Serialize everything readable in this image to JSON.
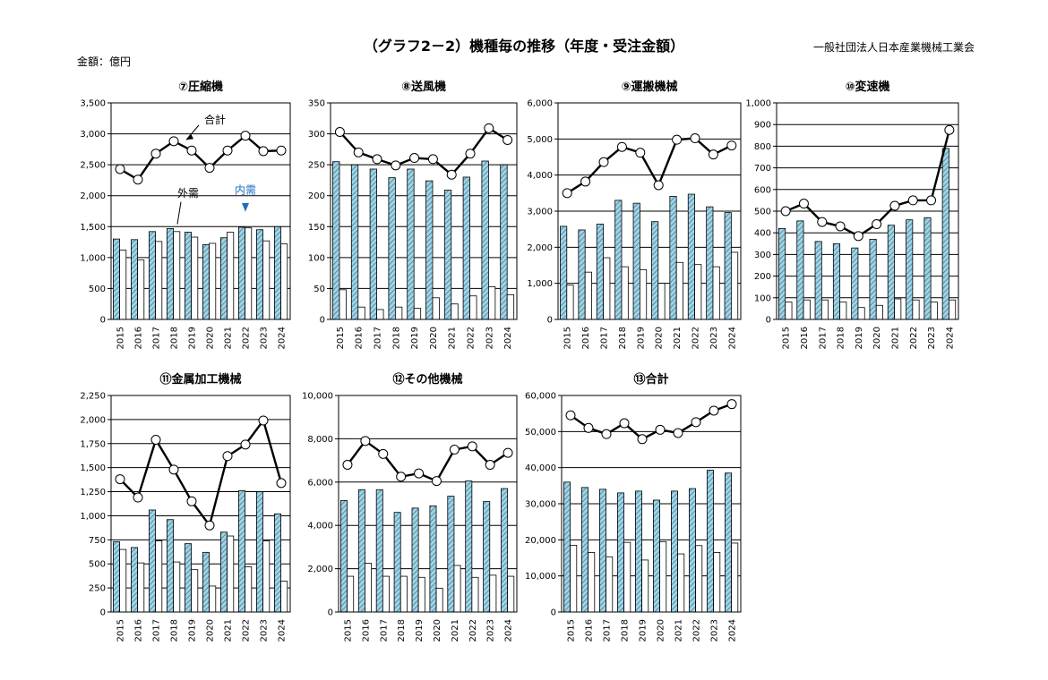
{
  "header": {
    "title": "（グラフ2－2）機種毎の推移（年度・受注金額）",
    "organization": "一般社団法人日本産業機械工業会",
    "unit": "金額：億円"
  },
  "colors": {
    "exports_fill": "#9fd3e6",
    "exports_hatch": "#3a6f86",
    "domestic_fill": "#ffffff",
    "line": "#000000",
    "annotation_blue": "#1f6fbf"
  },
  "chart_data": [
    {
      "type": "bar+line",
      "title": "⑦圧縮機",
      "categories": [
        "2015",
        "2016",
        "2017",
        "2018",
        "2019",
        "2020",
        "2021",
        "2022",
        "2023",
        "2024"
      ],
      "ylim": [
        0,
        3500
      ],
      "yticks": [
        0,
        500,
        1000,
        1500,
        2000,
        2500,
        3000,
        3500
      ],
      "ytick_labels": [
        "0",
        "500",
        "1,000",
        "1,500",
        "2,000",
        "2,500",
        "3,000",
        "3,500"
      ],
      "grid": true,
      "series": [
        {
          "name": "外需",
          "kind": "bar",
          "values": [
            1300,
            1290,
            1420,
            1470,
            1410,
            1210,
            1320,
            1490,
            1450,
            1500
          ]
        },
        {
          "name": "内需",
          "kind": "bar",
          "values": [
            1120,
            960,
            1260,
            1420,
            1330,
            1230,
            1410,
            1480,
            1270,
            1220
          ]
        },
        {
          "name": "合計",
          "kind": "line",
          "values": [
            2430,
            2260,
            2680,
            2880,
            2730,
            2450,
            2730,
            2970,
            2720,
            2730
          ]
        }
      ],
      "annotations": [
        {
          "text": "合計",
          "color": "#000000"
        },
        {
          "text": "外需",
          "color": "#000000"
        },
        {
          "text": "内需",
          "color": "#1f6fbf"
        }
      ]
    },
    {
      "type": "bar+line",
      "title": "⑧送風機",
      "categories": [
        "2015",
        "2016",
        "2017",
        "2018",
        "2019",
        "2020",
        "2021",
        "2022",
        "2023",
        "2024"
      ],
      "ylim": [
        0,
        350
      ],
      "yticks": [
        0,
        50,
        100,
        150,
        200,
        250,
        300,
        350
      ],
      "ytick_labels": [
        "0",
        "50",
        "100",
        "150",
        "200",
        "250",
        "300",
        "350"
      ],
      "grid": true,
      "series": [
        {
          "name": "外需",
          "kind": "bar",
          "values": [
            255,
            250,
            243,
            229,
            243,
            224,
            209,
            230,
            256,
            250
          ]
        },
        {
          "name": "内需",
          "kind": "bar",
          "values": [
            48,
            20,
            16,
            20,
            18,
            35,
            25,
            38,
            53,
            40
          ]
        },
        {
          "name": "合計",
          "kind": "line",
          "values": [
            303,
            270,
            259,
            249,
            261,
            259,
            234,
            268,
            309,
            290
          ]
        }
      ]
    },
    {
      "type": "bar+line",
      "title": "⑨運搬機械",
      "categories": [
        "2015",
        "2016",
        "2017",
        "2018",
        "2019",
        "2020",
        "2021",
        "2022",
        "2023",
        "2024"
      ],
      "ylim": [
        0,
        6000
      ],
      "yticks": [
        0,
        1000,
        2000,
        3000,
        4000,
        5000,
        6000
      ],
      "ytick_labels": [
        "0",
        "1,000",
        "2,000",
        "3,000",
        "4,000",
        "5,000",
        "6,000"
      ],
      "grid": true,
      "series": [
        {
          "name": "外需",
          "kind": "bar",
          "values": [
            2580,
            2480,
            2640,
            3300,
            3220,
            2710,
            3410,
            3470,
            3120,
            2960
          ]
        },
        {
          "name": "内需",
          "kind": "bar",
          "values": [
            950,
            1310,
            1710,
            1460,
            1380,
            1000,
            1580,
            1520,
            1460,
            1860
          ]
        },
        {
          "name": "合計",
          "kind": "line",
          "values": [
            3500,
            3820,
            4360,
            4780,
            4620,
            3720,
            4980,
            5020,
            4570,
            4820
          ]
        }
      ]
    },
    {
      "type": "bar+line",
      "title": "⑩変速機",
      "categories": [
        "2015",
        "2016",
        "2017",
        "2018",
        "2019",
        "2020",
        "2021",
        "2022",
        "2023",
        "2024"
      ],
      "ylim": [
        0,
        1000
      ],
      "yticks": [
        0,
        100,
        200,
        300,
        400,
        500,
        600,
        700,
        800,
        900,
        1000
      ],
      "ytick_labels": [
        "0",
        "100",
        "200",
        "300",
        "400",
        "500",
        "600",
        "700",
        "800",
        "900",
        "1,000"
      ],
      "grid": true,
      "series": [
        {
          "name": "外需",
          "kind": "bar",
          "values": [
            420,
            455,
            360,
            350,
            330,
            370,
            435,
            460,
            470,
            790
          ]
        },
        {
          "name": "内需",
          "kind": "bar",
          "values": [
            80,
            90,
            90,
            80,
            55,
            65,
            95,
            90,
            80,
            90
          ]
        },
        {
          "name": "合計",
          "kind": "line",
          "values": [
            500,
            535,
            450,
            430,
            385,
            440,
            525,
            550,
            550,
            875
          ]
        }
      ]
    },
    {
      "type": "bar+line",
      "title": "⑪金属加工機械",
      "categories": [
        "2015",
        "2016",
        "2017",
        "2018",
        "2019",
        "2020",
        "2021",
        "2022",
        "2023",
        "2024"
      ],
      "ylim": [
        0,
        2250
      ],
      "yticks": [
        0,
        250,
        500,
        750,
        1000,
        1250,
        1500,
        1750,
        2000,
        2250
      ],
      "ytick_labels": [
        "0",
        "250",
        "500",
        "750",
        "1,000",
        "1,250",
        "1,500",
        "1,750",
        "2,000",
        "2,250"
      ],
      "grid": true,
      "series": [
        {
          "name": "外需",
          "kind": "bar",
          "values": [
            730,
            670,
            1060,
            960,
            710,
            620,
            830,
            1260,
            1250,
            1020
          ]
        },
        {
          "name": "内需",
          "kind": "bar",
          "values": [
            650,
            510,
            740,
            520,
            440,
            270,
            790,
            470,
            740,
            320
          ]
        },
        {
          "name": "合計",
          "kind": "line",
          "values": [
            1380,
            1190,
            1790,
            1480,
            1150,
            900,
            1620,
            1740,
            1990,
            1340
          ]
        }
      ]
    },
    {
      "type": "bar+line",
      "title": "⑫その他機械",
      "categories": [
        "2015",
        "2016",
        "2017",
        "2018",
        "2019",
        "2020",
        "2021",
        "2022",
        "2023",
        "2024"
      ],
      "ylim": [
        0,
        10000
      ],
      "yticks": [
        0,
        2000,
        4000,
        6000,
        8000,
        10000
      ],
      "ytick_labels": [
        "0",
        "2,000",
        "4,000",
        "6,000",
        "8,000",
        "10,000"
      ],
      "grid": true,
      "series": [
        {
          "name": "外需",
          "kind": "bar",
          "values": [
            5150,
            5650,
            5650,
            4600,
            4800,
            4900,
            5350,
            6050,
            5100,
            5700
          ]
        },
        {
          "name": "内需",
          "kind": "bar",
          "values": [
            1650,
            2250,
            1650,
            1650,
            1600,
            1100,
            2150,
            1600,
            1700,
            1650
          ]
        },
        {
          "name": "合計",
          "kind": "line",
          "values": [
            6800,
            7900,
            7300,
            6250,
            6400,
            6050,
            7500,
            7650,
            6800,
            7350
          ]
        }
      ]
    },
    {
      "type": "bar+line",
      "title": "⑬合計",
      "categories": [
        "2015",
        "2016",
        "2017",
        "2018",
        "2019",
        "2020",
        "2021",
        "2022",
        "2023",
        "2024"
      ],
      "ylim": [
        0,
        60000
      ],
      "yticks": [
        0,
        10000,
        20000,
        30000,
        40000,
        50000,
        60000
      ],
      "ytick_labels": [
        "0",
        "10,000",
        "20,000",
        "30,000",
        "40,000",
        "50,000",
        "60,000"
      ],
      "grid": true,
      "series": [
        {
          "name": "外需",
          "kind": "bar",
          "values": [
            36000,
            34500,
            34000,
            33000,
            33500,
            31000,
            33500,
            34200,
            39300,
            38500
          ]
        },
        {
          "name": "内需",
          "kind": "bar",
          "values": [
            18500,
            16500,
            15300,
            19300,
            14400,
            19500,
            16100,
            18400,
            16500,
            19100
          ]
        },
        {
          "name": "合計",
          "kind": "line",
          "values": [
            54500,
            51000,
            49300,
            52300,
            47900,
            50500,
            49600,
            52600,
            55800,
            57600
          ]
        }
      ]
    }
  ]
}
